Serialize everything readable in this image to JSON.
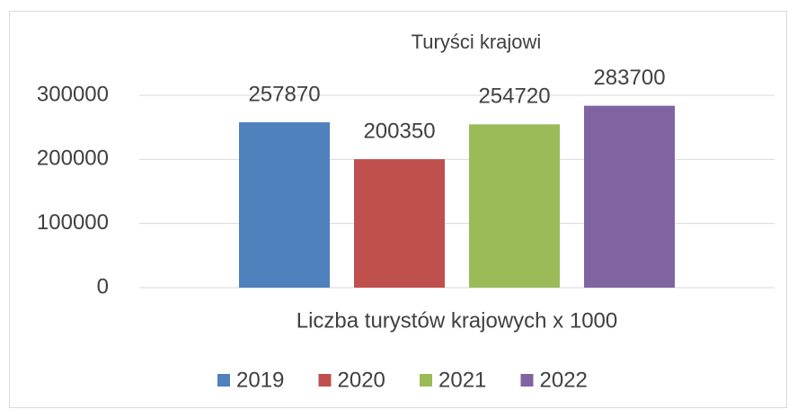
{
  "chart_data": {
    "type": "bar",
    "title": "Turyści krajowi",
    "categories": [
      "Liczba turystów krajowych x 1000"
    ],
    "series": [
      {
        "name": "2019",
        "color": "#4f81bd",
        "values": [
          257870
        ]
      },
      {
        "name": "2020",
        "color": "#c0504d",
        "values": [
          200350
        ]
      },
      {
        "name": "2021",
        "color": "#9bbb59",
        "values": [
          254720
        ]
      },
      {
        "name": "2022",
        "color": "#8064a2",
        "values": [
          283700
        ]
      }
    ],
    "ylim": [
      0,
      300000
    ],
    "yticks": [
      0,
      100000,
      200000,
      300000
    ],
    "grid": true,
    "legend": "bottom"
  }
}
